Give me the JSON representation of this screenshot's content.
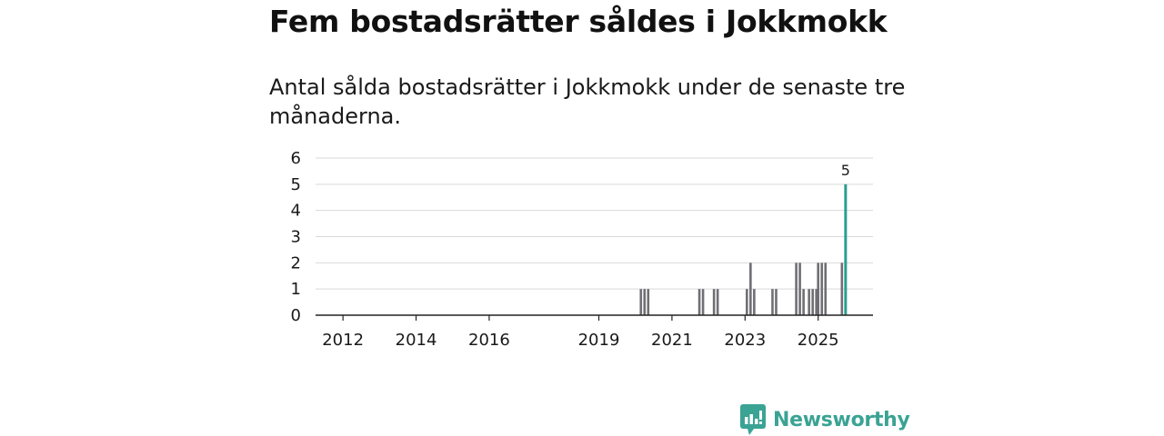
{
  "header": {
    "title": "Fem bostadsrätter såldes i Jokkmokk",
    "subtitle": "Antal sålda bostadsrätter i Jokkmokk under de senaste tre månaderna."
  },
  "brand": {
    "name": "Newsworthy",
    "icon": "newsworthy-logo-icon",
    "color": "#3aa394"
  },
  "colors": {
    "bar": "#6f6f74",
    "highlight": "#2a9d8f",
    "grid": "#d9d9d9",
    "axis": "#222222"
  },
  "chart_data": {
    "type": "bar",
    "title": "",
    "xlabel": "",
    "ylabel": "",
    "ylim": [
      0,
      6
    ],
    "yticks": [
      "0",
      "1",
      "2",
      "3",
      "4",
      "5",
      "6"
    ],
    "xticks": [
      {
        "label": "2012",
        "x": 2012.0
      },
      {
        "label": "2014",
        "x": 2014.0
      },
      {
        "label": "2016",
        "x": 2016.0
      },
      {
        "label": "2019",
        "x": 2019.0
      },
      {
        "label": "2021",
        "x": 2021.0
      },
      {
        "label": "2023",
        "x": 2023.0
      },
      {
        "label": "2025",
        "x": 2025.0
      }
    ],
    "x_range": [
      2011.25,
      2026.5
    ],
    "grid": true,
    "legend": "none",
    "bars": [
      {
        "x": 2020.15,
        "value": 1
      },
      {
        "x": 2020.25,
        "value": 1
      },
      {
        "x": 2020.35,
        "value": 1
      },
      {
        "x": 2021.75,
        "value": 1
      },
      {
        "x": 2021.85,
        "value": 1
      },
      {
        "x": 2022.15,
        "value": 1
      },
      {
        "x": 2022.25,
        "value": 1
      },
      {
        "x": 2023.05,
        "value": 1
      },
      {
        "x": 2023.15,
        "value": 2
      },
      {
        "x": 2023.25,
        "value": 1
      },
      {
        "x": 2023.75,
        "value": 1
      },
      {
        "x": 2023.85,
        "value": 1
      },
      {
        "x": 2024.4,
        "value": 2
      },
      {
        "x": 2024.5,
        "value": 2
      },
      {
        "x": 2024.6,
        "value": 1
      },
      {
        "x": 2024.75,
        "value": 1
      },
      {
        "x": 2024.85,
        "value": 1
      },
      {
        "x": 2024.95,
        "value": 1
      },
      {
        "x": 2025.0,
        "value": 2
      },
      {
        "x": 2025.1,
        "value": 2
      },
      {
        "x": 2025.2,
        "value": 2
      },
      {
        "x": 2025.65,
        "value": 2
      }
    ],
    "highlight": {
      "x": 2025.75,
      "value": 5,
      "label": "5"
    }
  }
}
